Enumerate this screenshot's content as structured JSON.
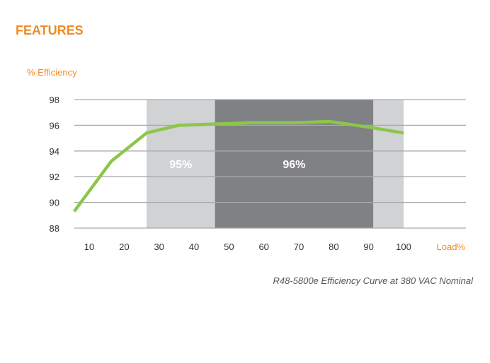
{
  "header": {
    "title": "FEATURES"
  },
  "chart_data": {
    "type": "line",
    "ylabel": "% Efficiency",
    "xlabel": "Load%",
    "ylim": [
      88,
      98
    ],
    "yticks": [
      88,
      90,
      92,
      94,
      96,
      98
    ],
    "xticks": [
      10,
      20,
      30,
      40,
      50,
      60,
      70,
      80,
      90,
      100
    ],
    "grid": true,
    "series": [
      {
        "name": "Efficiency",
        "color": "#8cc64a",
        "x": [
          5.7,
          16.3,
          26.4,
          35.6,
          46,
          56.4,
          69.6,
          78.7,
          83.8,
          91.3,
          100
        ],
        "y": [
          89.3,
          93.2,
          95.4,
          96.0,
          96.1,
          96.2,
          96.2,
          96.3,
          96.1,
          95.8,
          95.4
        ]
      }
    ],
    "bands": [
      {
        "label": "95%",
        "from": 26.4,
        "to": 100,
        "color": "#d1d2d4"
      },
      {
        "label": "96%",
        "from": 46,
        "to": 91.3,
        "color": "#808184"
      }
    ],
    "caption": "R48-5800e Efficiency Curve at 380 VAC Nominal"
  }
}
